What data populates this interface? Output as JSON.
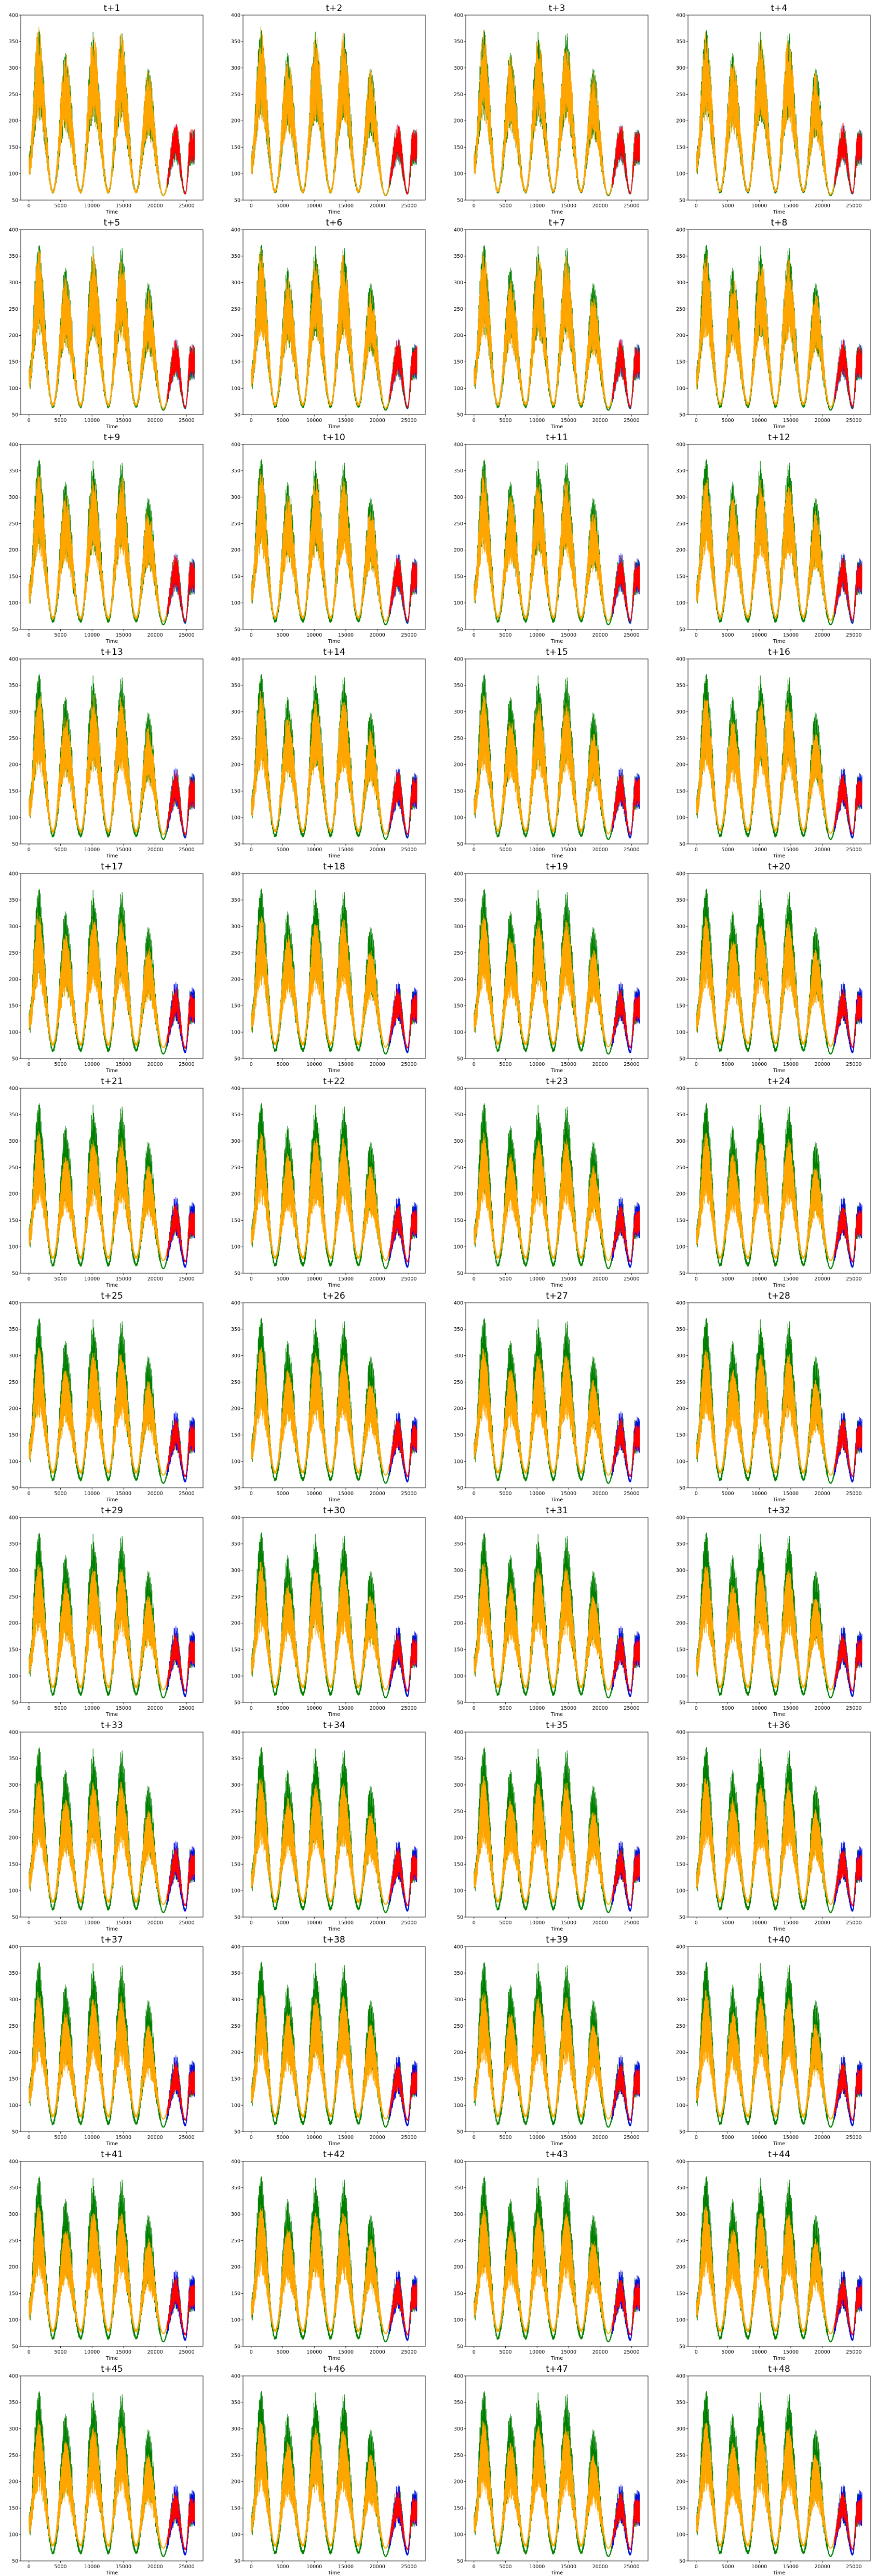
{
  "figure": {
    "rows": 12,
    "cols": 4,
    "subplot_titles": [
      "t+1",
      "t+2",
      "t+3",
      "t+4",
      "t+5",
      "t+6",
      "t+7",
      "t+8",
      "t+9",
      "t+10",
      "t+11",
      "t+12",
      "t+13",
      "t+14",
      "t+15",
      "t+16",
      "t+17",
      "t+18",
      "t+19",
      "t+20",
      "t+21",
      "t+22",
      "t+23",
      "t+24",
      "t+25",
      "t+26",
      "t+27",
      "t+28",
      "t+29",
      "t+30",
      "t+31",
      "t+32",
      "t+33",
      "t+34",
      "t+35",
      "t+36",
      "t+37",
      "t+38",
      "t+39",
      "t+40",
      "t+41",
      "t+42",
      "t+43",
      "t+44",
      "t+45",
      "t+46",
      "t+47",
      "t+48"
    ],
    "xlabel": "Time",
    "colors": {
      "actual": "#008000",
      "predicted_train": "#ffa500",
      "predicted_test": "#ff0000",
      "actual_test": "#0000ff"
    }
  },
  "chart_data": {
    "type": "line",
    "x_range": [
      0,
      26280
    ],
    "x_split": 21900,
    "xlim": [
      -1300,
      27600
    ],
    "ylim": [
      50,
      400
    ],
    "xticks": [
      0,
      5000,
      10000,
      15000,
      20000,
      25000
    ],
    "yticks": [
      50,
      100,
      150,
      200,
      250,
      300,
      350,
      400
    ],
    "grid": false,
    "legend": "none",
    "series": [
      {
        "color": "green",
        "segment": "full range 0–26280"
      },
      {
        "color": "orange",
        "segment": "0–21900"
      },
      {
        "color": "red",
        "segment": "21900–26280"
      },
      {
        "color": "blue",
        "segment": "21900–26280"
      }
    ],
    "seasonal_peaks": [
      {
        "x": 1500,
        "max": 385
      },
      {
        "x": 5800,
        "max": 330
      },
      {
        "x": 10200,
        "max": 370
      },
      {
        "x": 14600,
        "max": 370
      },
      {
        "x": 18900,
        "max": 300
      },
      {
        "x": 23300,
        "max": 200
      },
      {
        "x": 25600,
        "max": 185
      }
    ],
    "seasonal_troughs": [
      {
        "x": 3800,
        "min": 70
      },
      {
        "x": 8200,
        "min": 70
      },
      {
        "x": 12600,
        "min": 70
      },
      {
        "x": 17000,
        "min": 70
      },
      {
        "x": 21300,
        "min": 60
      },
      {
        "x": 24800,
        "min": 65
      }
    ]
  }
}
